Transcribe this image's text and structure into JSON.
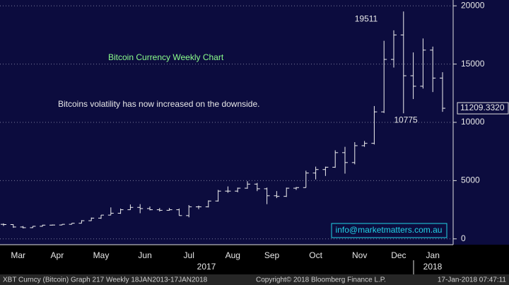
{
  "chart_data": {
    "type": "ohlc",
    "annotations": [
      "Bitcoin Currency Weekly Chart",
      "Bitcoins volatility has now increased on the downside."
    ],
    "watermark": "info@marketmatters.com.au",
    "high_label": {
      "value": 19511,
      "label": "19511"
    },
    "low_label": {
      "value": 10775,
      "label": "10775"
    },
    "last_label": "11209.3320",
    "categories": [
      "Mar",
      null,
      null,
      null,
      "Apr",
      null,
      null,
      null,
      "May",
      null,
      null,
      null,
      null,
      "Jun",
      null,
      null,
      null,
      "Jul",
      null,
      null,
      null,
      null,
      "Aug",
      null,
      null,
      null,
      "Sep",
      null,
      null,
      null,
      "Oct",
      null,
      null,
      null,
      null,
      "Nov",
      null,
      null,
      null,
      "Dec",
      null,
      null,
      null,
      "Jan",
      null,
      null
    ],
    "open": [
      1250,
      1230,
      1020,
      960,
      1080,
      1180,
      1190,
      1250,
      1340,
      1560,
      1780,
      2040,
      2200,
      2500,
      2700,
      2600,
      2500,
      2450,
      2500,
      2000,
      2750,
      2750,
      3250,
      4100,
      4100,
      4350,
      4700,
      4300,
      3700,
      3650,
      4350,
      4400,
      5650,
      5950,
      6150,
      7400,
      6550,
      8000,
      8200,
      10900,
      15400,
      17500,
      14000,
      13100,
      16200,
      13800
    ],
    "high": [
      1330,
      1250,
      1100,
      1100,
      1210,
      1220,
      1260,
      1350,
      1600,
      1830,
      2050,
      2700,
      2600,
      2950,
      2980,
      2780,
      2650,
      2650,
      2600,
      2900,
      2850,
      3300,
      4200,
      4500,
      4400,
      4950,
      4800,
      4400,
      4100,
      4400,
      4450,
      5850,
      6200,
      6200,
      7600,
      7900,
      8300,
      8400,
      11400,
      17000,
      17900,
      19511,
      16000,
      17200,
      16500,
      14300
    ],
    "low": [
      1100,
      950,
      900,
      940,
      1060,
      1150,
      1170,
      1240,
      1330,
      1540,
      1720,
      2030,
      2150,
      2480,
      2200,
      2450,
      2350,
      2420,
      2000,
      1850,
      2550,
      2700,
      3200,
      3950,
      4000,
      4300,
      4100,
      2980,
      3500,
      3600,
      4200,
      4400,
      5100,
      5400,
      6100,
      5600,
      6400,
      7900,
      8100,
      10800,
      14700,
      10775,
      12000,
      12900,
      12600,
      10900
    ],
    "close": [
      1230,
      1020,
      960,
      1080,
      1180,
      1190,
      1250,
      1340,
      1560,
      1780,
      2040,
      2200,
      2500,
      2700,
      2600,
      2500,
      2450,
      2500,
      2000,
      2750,
      2750,
      3250,
      4100,
      4100,
      4350,
      4700,
      4300,
      3700,
      3650,
      4350,
      4400,
      5650,
      5950,
      6150,
      7400,
      6550,
      8000,
      8200,
      10900,
      15400,
      17500,
      14000,
      13100,
      16200,
      13800,
      11209.332
    ],
    "color": "#f0f0f0",
    "ylim": [
      -500,
      20500
    ],
    "yticks": [
      0,
      5000,
      10000,
      15000,
      20000
    ],
    "grid": true,
    "years": [
      "2017",
      "2018"
    ],
    "footer": [
      "XBT Curncy (Bitcoin) Graph 217  Weekly 18JAN2013-17JAN2018",
      "Copyright© 2018 Bloomberg Finance L.P.",
      "17-Jan-2018 07:47:11"
    ]
  }
}
